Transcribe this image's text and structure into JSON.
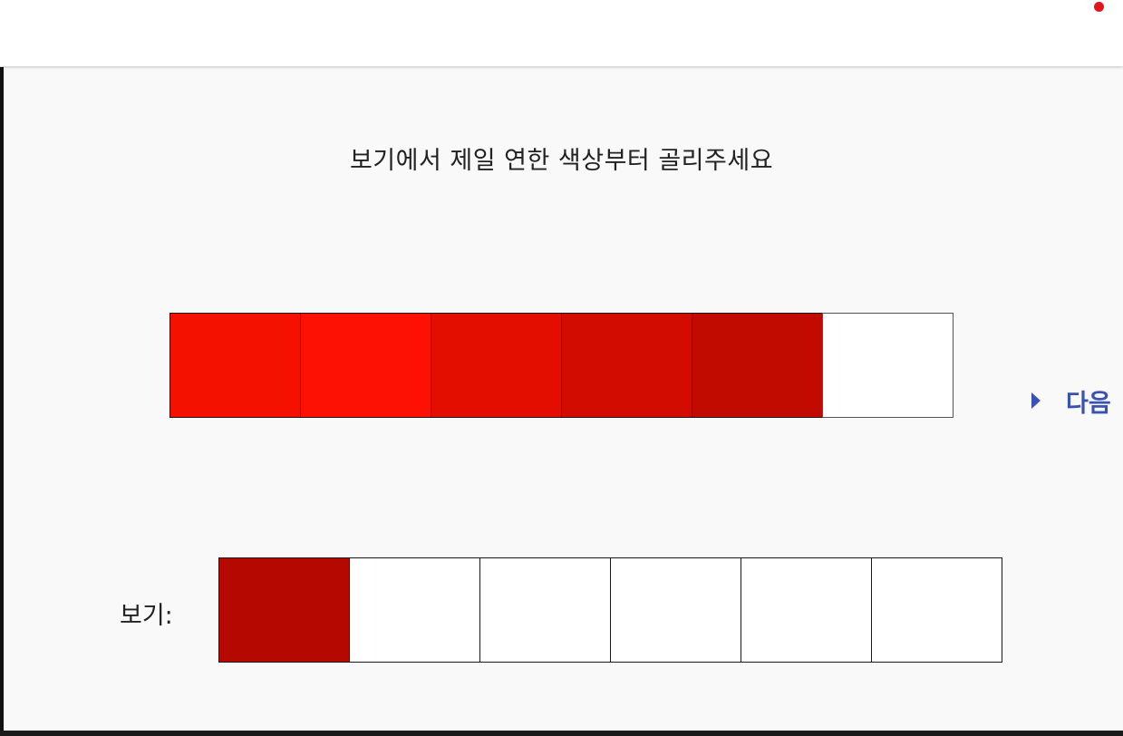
{
  "header": {
    "status_dot_color": "#e0161c"
  },
  "main": {
    "instruction": "보기에서 제일 연한 색상부터 골리주세요",
    "sequence": [
      {
        "color": "#f41100"
      },
      {
        "color": "#fd1104"
      },
      {
        "color": "#e40e00"
      },
      {
        "color": "#d20c00"
      },
      {
        "color": "#c20b00"
      },
      {
        "color": "#ffffff"
      }
    ],
    "next_label": "다음",
    "options_label": "보기:",
    "options": [
      {
        "color": "#b40800"
      },
      {
        "color": "#ffffff"
      },
      {
        "color": "#ffffff"
      },
      {
        "color": "#ffffff"
      },
      {
        "color": "#ffffff"
      },
      {
        "color": "#ffffff"
      }
    ]
  }
}
